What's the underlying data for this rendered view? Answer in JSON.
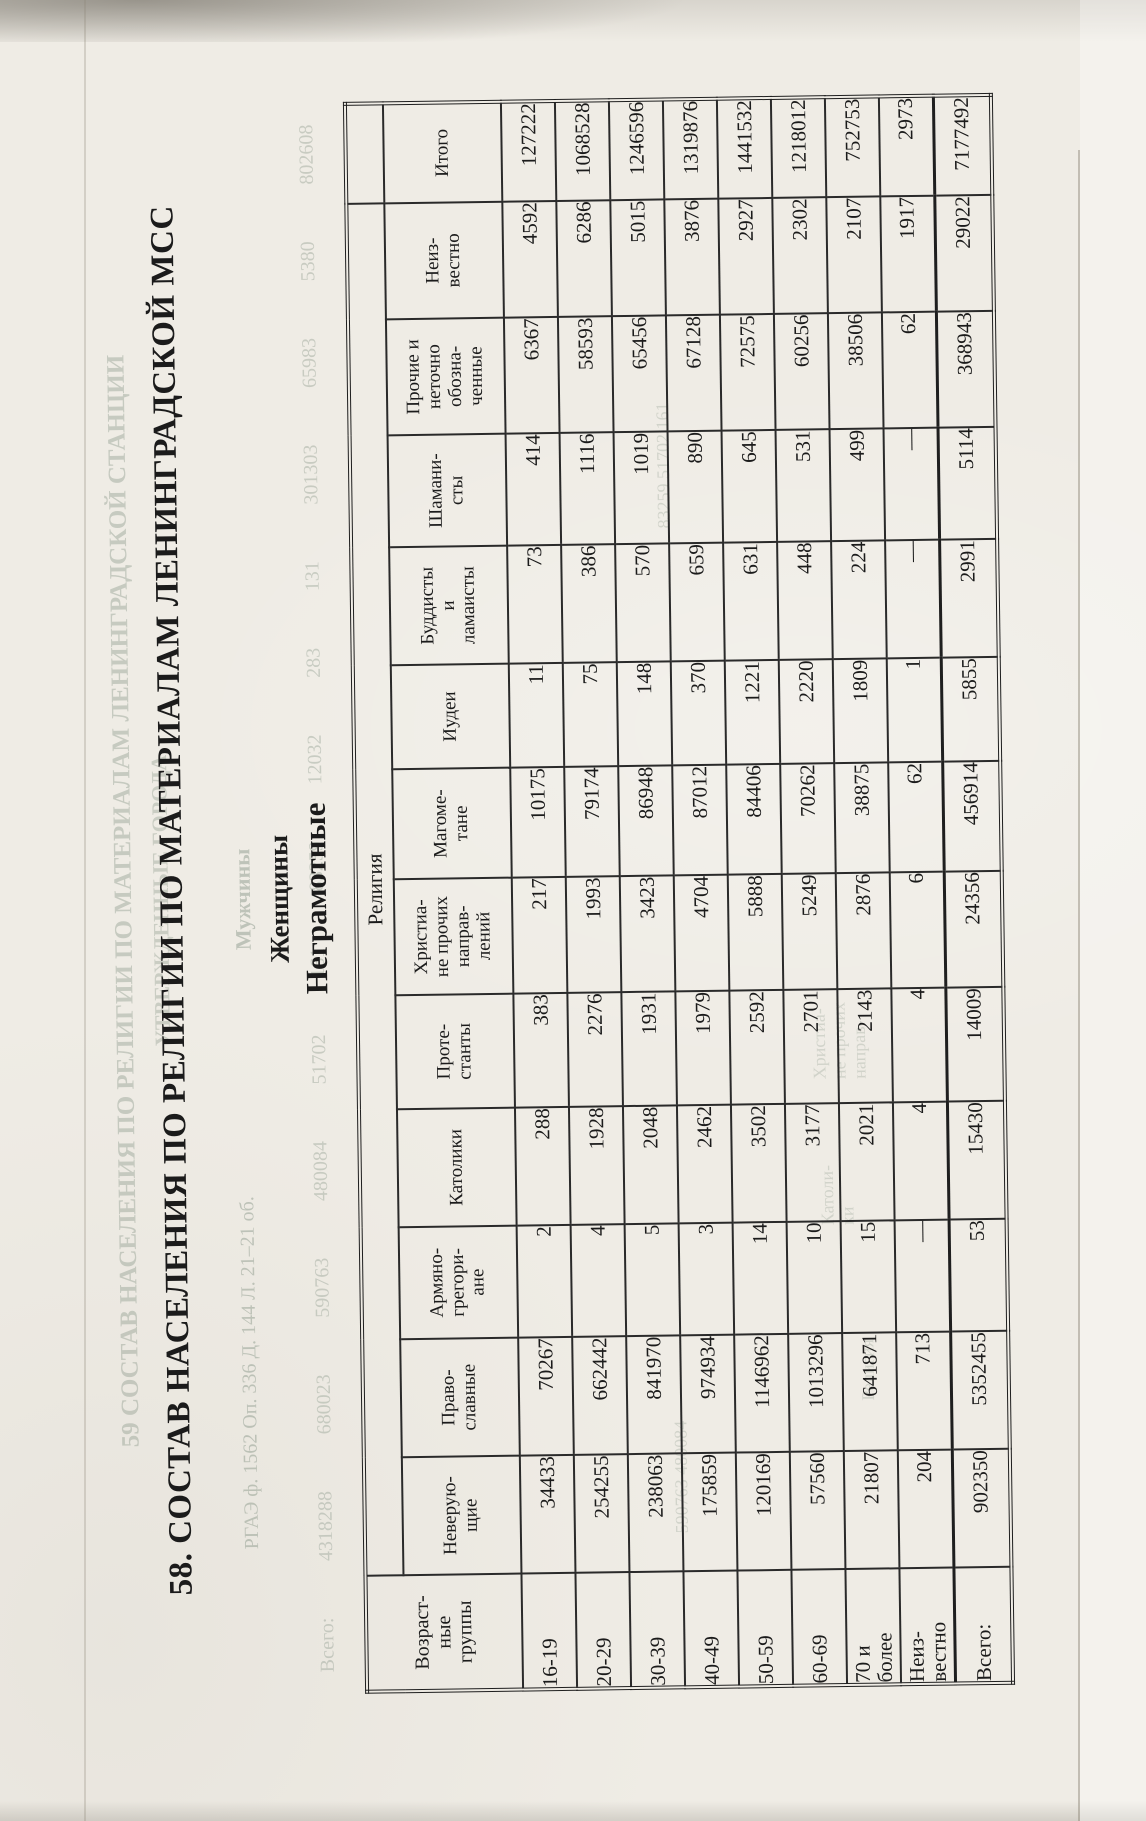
{
  "page": {
    "title": "58. СОСТАВ НАСЕЛЕНИЯ ПО РЕЛИГИИ ПО МАТЕРИАЛАМ ЛЕНИНГРАДСКОЙ МСС",
    "subtitle_gender": "Женщины",
    "subtitle_literacy": "Неграмотные",
    "paper_color": "#efece5",
    "ink_color": "#1b1b1b",
    "bleed_color": "#8f9c8e"
  },
  "bleed": {
    "reverse_title": "59 СОСТАВ НАСЕЛЕНИЯ ПО РЕЛИГИИ ПО МАТЕРИАЛАМ ЛЕНИНГРАДСКОЙ СТАНЦИИ",
    "reverse_title2": "УТВЕРЖДЕННЫЕ ГОРОДА",
    "archival_ref": "РГАЭ ф. 1562 Оп. 336 Д. 144 Л. 21–21 об.",
    "reverse_gender": "Мужчины",
    "show_through_numbers": [
      "Всего:",
      "4318288",
      "680023",
      "590763",
      "480084",
      "51702",
      "161",
      "83259",
      "12032",
      "283",
      "131",
      "301303",
      "65983",
      "5380",
      "802608"
    ],
    "ghost_fragments": [
      "590763  480084",
      "83259  51702  161",
      "Христиа-\nне прочих\nнаправ-",
      "Католи-\nки",
      "Религия"
    ]
  },
  "table": {
    "corner_header": "Возраст-\nные\nгруппы",
    "religion_header": "Религия",
    "total_column_header": "Итого",
    "columns": [
      "Неверую-\nщие",
      "Право-\nславные",
      "Армяно-\nгрегори-\nане",
      "Католики",
      "Проте-\nстанты",
      "Христиа-\nне прочих\nнаправ-\nлений",
      "Магоме-\nтане",
      "Иудеи",
      "Буддисты\nи\nламаисты",
      "Шамани-\nсты",
      "Прочие и\nнеточно\nобозна-\nченные",
      "Неиз-\nвестно"
    ],
    "rows": [
      {
        "label": "16-19",
        "values": [
          "34433",
          "70267",
          "2",
          "288",
          "383",
          "217",
          "10175",
          "11",
          "73",
          "414",
          "6367",
          "4592"
        ],
        "total": "127222"
      },
      {
        "label": "20-29",
        "values": [
          "254255",
          "662442",
          "4",
          "1928",
          "2276",
          "1993",
          "79174",
          "75",
          "386",
          "1116",
          "58593",
          "6286"
        ],
        "total": "1068528"
      },
      {
        "label": "30-39",
        "values": [
          "238063",
          "841970",
          "5",
          "2048",
          "1931",
          "3423",
          "86948",
          "148",
          "570",
          "1019",
          "65456",
          "5015"
        ],
        "total": "1246596"
      },
      {
        "label": "40-49",
        "values": [
          "175859",
          "974934",
          "3",
          "2462",
          "1979",
          "4704",
          "87012",
          "370",
          "659",
          "890",
          "67128",
          "3876"
        ],
        "total": "1319876"
      },
      {
        "label": "50-59",
        "values": [
          "120169",
          "1146962",
          "14",
          "3502",
          "2592",
          "5888",
          "84406",
          "1221",
          "631",
          "645",
          "72575",
          "2927"
        ],
        "total": "1441532"
      },
      {
        "label": "60-69",
        "values": [
          "57560",
          "1013296",
          "10",
          "3177",
          "2701",
          "5249",
          "70262",
          "2220",
          "448",
          "531",
          "60256",
          "2302"
        ],
        "total": "1218012"
      },
      {
        "label": "70 и\nболее",
        "values": [
          "21807",
          "641871",
          "15",
          "2021",
          "2143",
          "2876",
          "38875",
          "1809",
          "224",
          "499",
          "38506",
          "2107"
        ],
        "total": "752753"
      },
      {
        "label": "Неиз-\nвестно",
        "values": [
          "204",
          "713",
          "—",
          "4",
          "4",
          "6",
          "62",
          "1",
          "—",
          "—",
          "62",
          "1917"
        ],
        "total": "2973"
      },
      {
        "label": "Всего:",
        "values": [
          "902350",
          "5352455",
          "53",
          "15430",
          "14009",
          "24356",
          "456914",
          "5855",
          "2991",
          "5114",
          "368943",
          "29022"
        ],
        "total": "7177492"
      }
    ]
  }
}
